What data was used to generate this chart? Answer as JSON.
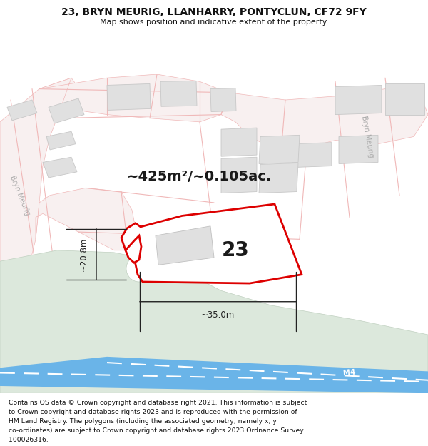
{
  "title_line1": "23, BRYN MEURIG, LLANHARRY, PONTYCLUN, CF72 9FY",
  "title_line2": "Map shows position and indicative extent of the property.",
  "footer_lines": [
    "Contains OS data © Crown copyright and database right 2021. This information is subject",
    "to Crown copyright and database rights 2023 and is reproduced with the permission of",
    "HM Land Registry. The polygons (including the associated geometry, namely x, y",
    "co-ordinates) are subject to Crown copyright and database rights 2023 Ordnance Survey",
    "100026316."
  ],
  "map_bg": "#ffffff",
  "road_outline_color": "#f0b8b8",
  "building_fill": "#e0e0e0",
  "building_stroke": "#c8c8c8",
  "plot_block_fill": "#e8e8e8",
  "green_area_color": "#dce8dc",
  "green_area_stroke": "#c0d0c0",
  "motorway_color": "#6ab4e8",
  "motorway_stripe": "#ffffff",
  "plot_outline_color": "#dd0000",
  "area_text": "~425m²/~0.105ac.",
  "dim_width": "~35.0m",
  "dim_height": "~20.8m",
  "plot_number": "23",
  "road_label_left": "Bryn Meurig",
  "road_label_right": "Bryn Meurig",
  "motorway_label": "M4"
}
